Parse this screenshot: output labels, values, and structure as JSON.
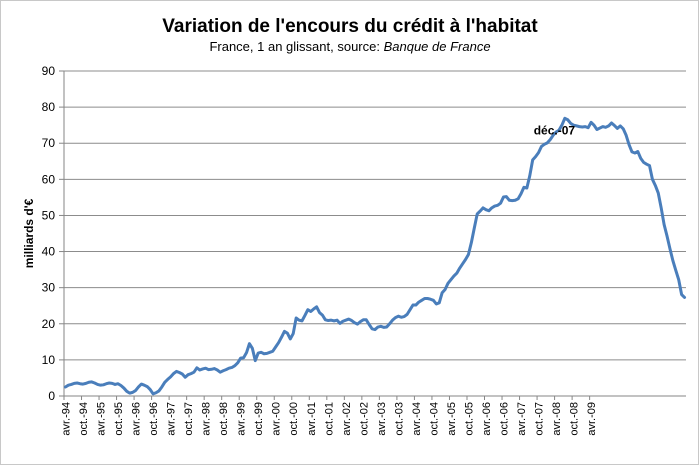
{
  "chart_data": {
    "type": "line",
    "title": "Variation de l'encours du crédit à l'habitat",
    "subtitle_prefix": "France, 1 an glissant, source: ",
    "subtitle_source": "Banque de France",
    "xlabel": "",
    "ylabel": "milliards d'€",
    "ylim": [
      0,
      90
    ],
    "yticks": [
      0,
      10,
      20,
      30,
      40,
      50,
      60,
      70,
      80,
      90
    ],
    "grid": true,
    "legend": "none",
    "line_color": "#4a7ebb",
    "x_tick_labels": [
      "avr.-94",
      "oct.-94",
      "avr.-95",
      "oct.-95",
      "avr.-96",
      "oct.-96",
      "avr.-97",
      "oct.-97",
      "avr.-98",
      "oct.-98",
      "avr.-99",
      "oct.-99",
      "avr.-00",
      "oct.-00",
      "avr.-01",
      "oct.-01",
      "avr.-02",
      "oct.-02",
      "avr.-03",
      "oct.-03",
      "avr.-04",
      "oct.-04",
      "avr.-05",
      "oct.-05",
      "avr.-06",
      "oct.-06",
      "avr.-07",
      "oct.-07",
      "avr.-08",
      "oct.-08",
      "avr.-09"
    ],
    "annotation": {
      "text": "déc.-07",
      "x_month": 164
    },
    "series": [
      {
        "values": [
          2.5,
          3,
          3.2,
          3.5,
          3.6,
          3.4,
          3.3,
          3.5,
          3.8,
          3.9,
          3.6,
          3.2,
          3,
          3.1,
          3.4,
          3.6,
          3.5,
          3.2,
          3.4,
          2.9,
          2.2,
          1.3,
          0.8,
          1,
          1.5,
          2.5,
          3.3,
          3,
          2.6,
          1.8,
          0.6,
          0.9,
          1.4,
          2.5,
          3.8,
          4.6,
          5.3,
          6.2,
          6.8,
          6.5,
          6.1,
          5.2,
          5.9,
          6.2,
          6.6,
          7.8,
          7.2,
          7.5,
          7.7,
          7.3,
          7.4,
          7.6,
          7.2,
          6.6,
          7,
          7.3,
          7.7,
          7.9,
          8.4,
          9.2,
          10.5,
          10.6,
          12,
          14.5,
          13.2,
          9.8,
          11.9,
          12.1,
          11.7,
          11.8,
          12.1,
          12.4,
          13.6,
          14.8,
          16.3,
          17.9,
          17.4,
          15.8,
          17.3,
          21.6,
          21,
          20.8,
          22.3,
          23.9,
          23.4,
          24.1,
          24.7,
          23.1,
          22.4,
          21.1,
          20.9,
          21,
          20.8,
          21,
          20.1,
          20.7,
          21,
          21.3,
          20.9,
          20.3,
          19.9,
          20.6,
          21.1,
          21.1,
          19.8,
          18.6,
          18.4,
          19.1,
          19.3,
          19,
          19.1,
          20,
          21,
          21.7,
          22.1,
          21.8,
          22,
          22.6,
          23.9,
          25.2,
          25.2,
          26,
          26.5,
          27,
          27,
          26.8,
          26.5,
          25.5,
          25.8,
          28.6,
          29.5,
          31.2,
          32.2,
          33.2,
          34,
          35.4,
          36.6,
          37.8,
          39.2,
          42.5,
          46.5,
          50.4,
          51.2,
          52.1,
          51.6,
          51.3,
          52.1,
          52.6,
          52.8,
          53.4,
          55.1,
          55.2,
          54.2,
          54.1,
          54.2,
          54.6,
          56,
          57.8,
          57.6,
          61,
          65.4,
          66.3,
          67.4,
          69.1,
          69.7,
          70.1,
          71,
          72.2,
          73.1,
          73.6,
          75,
          76.9,
          76.5,
          75.5,
          75,
          74.8,
          74.6,
          74.5,
          74.6,
          74.3,
          75.8,
          75,
          73.8,
          74.2,
          74.6,
          74.4,
          74.8,
          75.6,
          74.9,
          74.1,
          74.8,
          74,
          72.2,
          69.6,
          67.6,
          67.3,
          67.7,
          65.8,
          64.7,
          64.2,
          63.8,
          60,
          58.3,
          56.2,
          52.1,
          47.5,
          44.3,
          40.8,
          37.5,
          34.8,
          32.2,
          28.1,
          27.3
        ]
      }
    ]
  }
}
